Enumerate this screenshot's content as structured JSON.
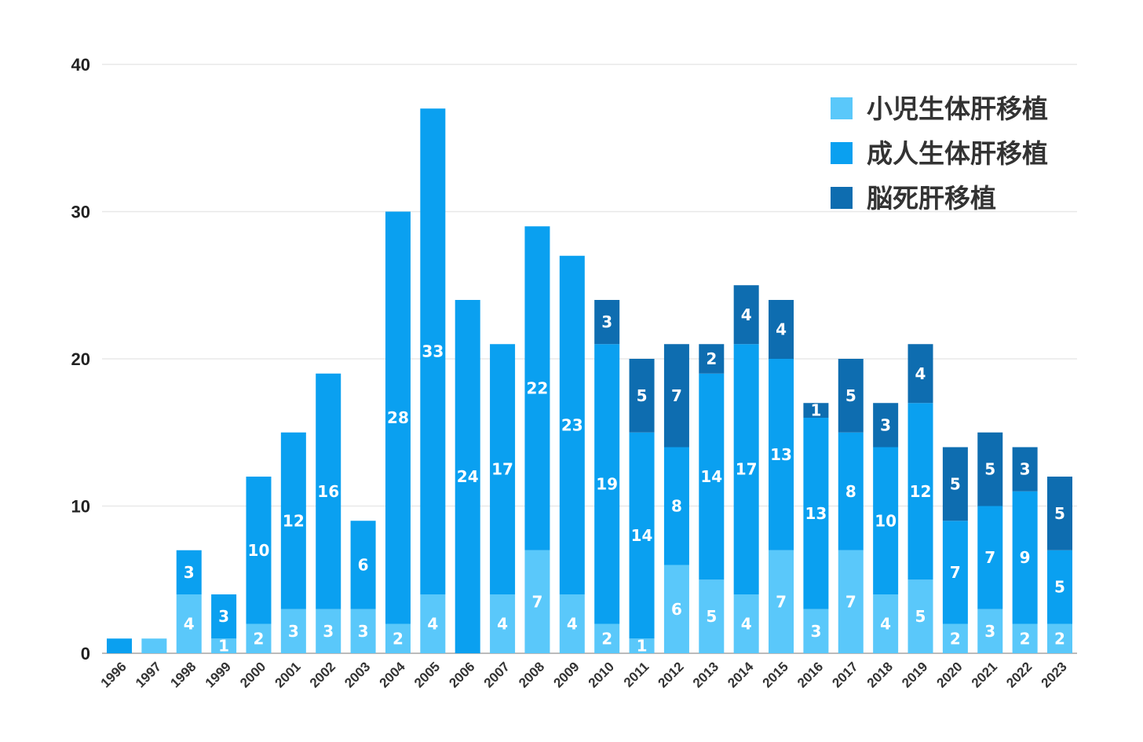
{
  "chart_data": {
    "type": "bar",
    "stacked": true,
    "categories": [
      "1996",
      "1997",
      "1998",
      "1999",
      "2000",
      "2001",
      "2002",
      "2003",
      "2004",
      "2005",
      "2006",
      "2007",
      "2008",
      "2009",
      "2010",
      "2011",
      "2012",
      "2013",
      "2014",
      "2015",
      "2016",
      "2017",
      "2018",
      "2019",
      "2020",
      "2021",
      "2022",
      "2023"
    ],
    "series": [
      {
        "name": "小児生体肝移植",
        "color": "#5ac8fa",
        "values": [
          0,
          1,
          4,
          1,
          2,
          3,
          3,
          3,
          2,
          4,
          0,
          4,
          7,
          4,
          2,
          1,
          6,
          5,
          4,
          7,
          3,
          7,
          4,
          5,
          2,
          3,
          2,
          2
        ],
        "labels": [
          "",
          "",
          "4",
          "1",
          "2",
          "3",
          "3",
          "3",
          "2",
          "4",
          "",
          "4",
          "7",
          "4",
          "2",
          "1",
          "6",
          "5",
          "4",
          "7",
          "3",
          "7",
          "4",
          "5",
          "2",
          "3",
          "2",
          "2"
        ]
      },
      {
        "name": "成人生体肝移植",
        "color": "#0aa0f0",
        "values": [
          1,
          0,
          3,
          3,
          10,
          12,
          16,
          6,
          28,
          33,
          24,
          17,
          22,
          23,
          19,
          14,
          8,
          14,
          17,
          13,
          13,
          8,
          10,
          12,
          7,
          7,
          9,
          5
        ],
        "labels": [
          "",
          "",
          "3",
          "3",
          "10",
          "12",
          "16",
          "6",
          "28",
          "33",
          "24",
          "17",
          "22",
          "23",
          "19",
          "14",
          "8",
          "14",
          "17",
          "13",
          "13",
          "8",
          "10",
          "12",
          "7",
          "7",
          "9",
          "5"
        ]
      },
      {
        "name": "脳死肝移植",
        "color": "#0e6db0",
        "values": [
          0,
          0,
          0,
          0,
          0,
          0,
          0,
          0,
          0,
          0,
          0,
          0,
          0,
          0,
          3,
          5,
          7,
          2,
          4,
          4,
          1,
          5,
          3,
          4,
          5,
          5,
          3,
          5
        ],
        "labels": [
          "",
          "",
          "",
          "",
          "",
          "",
          "",
          "",
          "",
          "",
          "",
          "",
          "",
          "",
          "3",
          "5",
          "7",
          "2",
          "4",
          "4",
          "1",
          "5",
          "3",
          "4",
          "5",
          "5",
          "3",
          "5"
        ]
      }
    ],
    "ylim": [
      0,
      40
    ],
    "yticks": [
      0,
      10,
      20,
      30,
      40
    ],
    "grid": true,
    "legend_position": "top-right"
  }
}
